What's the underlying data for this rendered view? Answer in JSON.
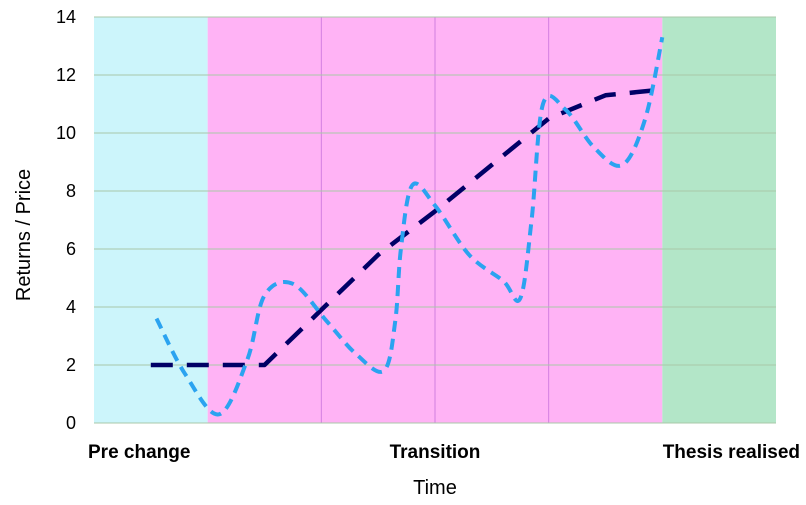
{
  "chart_data": {
    "type": "line",
    "title": "",
    "xlabel": "Time",
    "ylabel": "Returns / Price",
    "ylim": [
      0,
      14
    ],
    "yticks": [
      0,
      2,
      4,
      6,
      8,
      10,
      12,
      14
    ],
    "grid": "horizontal",
    "x_phase_labels": [
      "Pre change",
      "Transition",
      "Thesis realised"
    ],
    "regions": [
      {
        "start": 0,
        "end": 1,
        "color": "#ccf5fb"
      },
      {
        "start": 1,
        "end": 5,
        "color": "#ffb3f5"
      },
      {
        "start": 5,
        "end": 6,
        "color": "#b3e6c8"
      }
    ],
    "region_dividers": [
      2,
      3,
      4
    ],
    "series": [
      {
        "line_color": "#000066",
        "dash": "dashed-thick",
        "points": [
          [
            0.5,
            2
          ],
          [
            1.0,
            2
          ],
          [
            1.5,
            2
          ],
          [
            2.0,
            3.9
          ],
          [
            2.5,
            5.8
          ],
          [
            3.0,
            7.3
          ],
          [
            3.5,
            8.9
          ],
          [
            4.0,
            10.5
          ],
          [
            4.5,
            11.3
          ],
          [
            5.0,
            11.5
          ]
        ]
      },
      {
        "line_color": "#2ba3f0",
        "dash": "dashed",
        "points": [
          [
            0.55,
            3.6
          ],
          [
            0.8,
            1.7
          ],
          [
            1.1,
            0.3
          ],
          [
            1.35,
            2.2
          ],
          [
            1.5,
            4.4
          ],
          [
            1.75,
            4.8
          ],
          [
            2.05,
            3.5
          ],
          [
            2.3,
            2.4
          ],
          [
            2.55,
            1.8
          ],
          [
            2.65,
            3.5
          ],
          [
            2.7,
            6.0
          ],
          [
            2.8,
            8.2
          ],
          [
            3.0,
            7.5
          ],
          [
            3.3,
            5.8
          ],
          [
            3.6,
            4.9
          ],
          [
            3.75,
            4.3
          ],
          [
            3.85,
            7.0
          ],
          [
            3.95,
            11.0
          ],
          [
            4.15,
            10.8
          ],
          [
            4.4,
            9.5
          ],
          [
            4.65,
            8.9
          ],
          [
            4.85,
            10.5
          ],
          [
            5.0,
            13.3
          ]
        ]
      }
    ]
  }
}
